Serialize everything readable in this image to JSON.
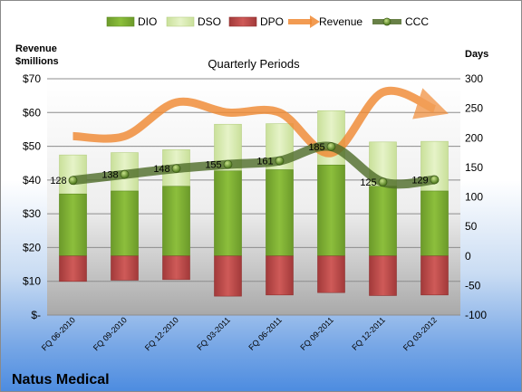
{
  "chart_data": {
    "type": "bar",
    "subtitle": "Quarterly Periods",
    "company": "Natus Medical",
    "y_left_title": [
      "Revenue",
      "$millions"
    ],
    "y_right_title": "Days",
    "left_ticks": [
      "$-",
      "$10",
      "$20",
      "$30",
      "$40",
      "$50",
      "$60",
      "$70"
    ],
    "left_ylim": [
      0,
      70
    ],
    "right_ticks": [
      "-100",
      "-50",
      "0",
      "50",
      "100",
      "150",
      "200",
      "250",
      "300"
    ],
    "right_ylim": [
      -100,
      300
    ],
    "categories": [
      "FQ 06-2010",
      "FQ 09-2010",
      "FQ 12-2010",
      "FQ 03-2011",
      "FQ 06-2011",
      "FQ 09-2011",
      "FQ 12-2011",
      "FQ 03-2012"
    ],
    "legend": [
      "DIO",
      "DSO",
      "DPO",
      "Revenue",
      "CCC"
    ],
    "series": [
      {
        "name": "DIO",
        "axis": "right",
        "values": [
          105,
          110,
          118,
          144,
          146,
          154,
          118,
          110
        ]
      },
      {
        "name": "DSO",
        "axis": "right",
        "values": [
          171,
          175,
          180,
          223,
          224,
          246,
          193,
          194
        ]
      },
      {
        "name": "DPO",
        "axis": "right",
        "values": [
          -43,
          -41,
          -40,
          -68,
          -66,
          -62,
          -67,
          -66
        ]
      },
      {
        "name": "Revenue",
        "axis": "left",
        "values": [
          53,
          53,
          63,
          60,
          60,
          48,
          66,
          61
        ]
      },
      {
        "name": "CCC",
        "axis": "right",
        "values": [
          128,
          138,
          148,
          155,
          161,
          185,
          125,
          129
        ]
      }
    ],
    "ccc_labels": [
      "128",
      "138",
      "148",
      "155",
      "161",
      "185",
      "125",
      "129"
    ],
    "colors": {
      "DIO": "#7da634",
      "DSO": "#d5e8a6",
      "DPO": "#b94a48",
      "Revenue": "#f08a34",
      "CCC": "#4e6b28"
    }
  }
}
